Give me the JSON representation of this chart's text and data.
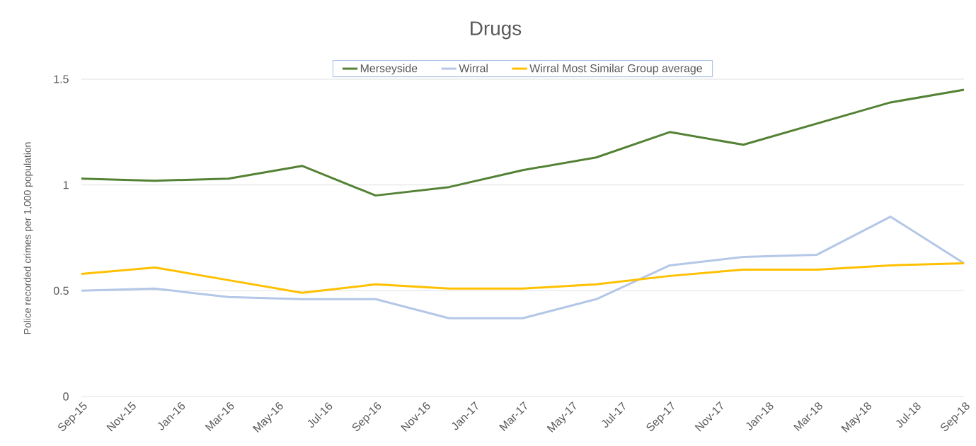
{
  "chart_data": {
    "type": "line",
    "title": "Drugs",
    "ylabel": "Police recorded crimes per 1,000 population",
    "x": [
      "2015-09",
      "2015-12",
      "2016-03",
      "2016-06",
      "2016-09",
      "2016-12",
      "2017-03",
      "2017-06",
      "2017-09",
      "2017-12",
      "2018-03",
      "2018-06",
      "2018-09"
    ],
    "series": [
      {
        "name": "Merseyside",
        "color": "#548235",
        "values": [
          1.03,
          1.02,
          1.03,
          1.09,
          0.95,
          0.99,
          1.07,
          1.13,
          1.25,
          1.19,
          1.29,
          1.39,
          1.45
        ]
      },
      {
        "name": "Wirral",
        "color": "#b4c7e7",
        "values": [
          0.5,
          0.51,
          0.47,
          0.46,
          0.46,
          0.37,
          0.37,
          0.46,
          0.62,
          0.66,
          0.67,
          0.85,
          0.63
        ]
      },
      {
        "name": "Wirral Most Similar Group average",
        "color": "#ffc000",
        "values": [
          0.58,
          0.61,
          0.55,
          0.49,
          0.53,
          0.51,
          0.51,
          0.53,
          0.57,
          0.6,
          0.6,
          0.62,
          0.63
        ]
      }
    ],
    "xlim": [
      "2015-09",
      "2018-09"
    ],
    "ylim": [
      0,
      1.5
    ],
    "xticks": [
      {
        "value": "2015-09",
        "label": "Sep-15"
      },
      {
        "value": "2015-11",
        "label": "Nov-15"
      },
      {
        "value": "2016-01",
        "label": "Jan-16"
      },
      {
        "value": "2016-03",
        "label": "Mar-16"
      },
      {
        "value": "2016-05",
        "label": "May-16"
      },
      {
        "value": "2016-07",
        "label": "Jul-16"
      },
      {
        "value": "2016-09",
        "label": "Sep-16"
      },
      {
        "value": "2016-11",
        "label": "Nov-16"
      },
      {
        "value": "2017-01",
        "label": "Jan-17"
      },
      {
        "value": "2017-03",
        "label": "Mar-17"
      },
      {
        "value": "2017-05",
        "label": "May-17"
      },
      {
        "value": "2017-07",
        "label": "Jul-17"
      },
      {
        "value": "2017-09",
        "label": "Sep-17"
      },
      {
        "value": "2017-11",
        "label": "Nov-17"
      },
      {
        "value": "2018-01",
        "label": "Jan-18"
      },
      {
        "value": "2018-03",
        "label": "Mar-18"
      },
      {
        "value": "2018-05",
        "label": "May-18"
      },
      {
        "value": "2018-07",
        "label": "Jul-18"
      },
      {
        "value": "2018-09",
        "label": "Sep-18"
      }
    ],
    "yticks": [
      0,
      0.5,
      1,
      1.5
    ],
    "grid": "y",
    "legend": "top",
    "marker": "none",
    "line_style": "solid"
  }
}
